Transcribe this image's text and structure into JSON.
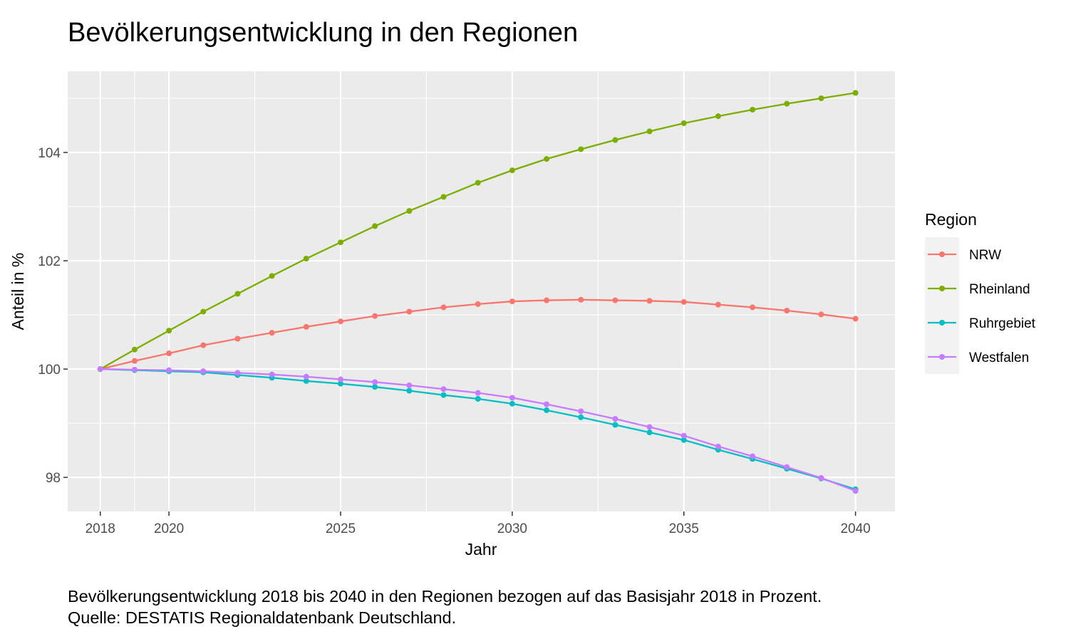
{
  "chart_data": {
    "type": "line",
    "title": "Bevölkerungsentwicklung in den Regionen",
    "xlabel": "Jahr",
    "ylabel": "Anteil in %",
    "xlim": [
      2017.05,
      2041.15
    ],
    "ylim": [
      97.37,
      105.5
    ],
    "x_ticks": [
      2018,
      2020,
      2025,
      2030,
      2035,
      2040
    ],
    "x_tick_labels": [
      "2018",
      "2020",
      "2025",
      "2030",
      "2035",
      "2040"
    ],
    "y_ticks": [
      98,
      100,
      102,
      104
    ],
    "y_tick_labels": [
      "98",
      "100",
      "102",
      "104"
    ],
    "grid": true,
    "legend": {
      "title": "Region",
      "position": "right"
    },
    "x": [
      2018,
      2019,
      2020,
      2021,
      2022,
      2023,
      2024,
      2025,
      2026,
      2027,
      2028,
      2029,
      2030,
      2031,
      2032,
      2033,
      2034,
      2035,
      2036,
      2037,
      2038,
      2039,
      2040
    ],
    "series": [
      {
        "name": "NRW",
        "color": "#F8766D",
        "values": [
          100.0,
          100.15,
          100.29,
          100.44,
          100.56,
          100.67,
          100.78,
          100.88,
          100.98,
          101.06,
          101.14,
          101.2,
          101.25,
          101.27,
          101.28,
          101.27,
          101.26,
          101.24,
          101.19,
          101.14,
          101.08,
          101.01,
          100.93
        ]
      },
      {
        "name": "Rheinland",
        "color": "#7CAE00",
        "values": [
          100.0,
          100.36,
          100.71,
          101.06,
          101.39,
          101.72,
          102.04,
          102.34,
          102.64,
          102.92,
          103.18,
          103.44,
          103.67,
          103.88,
          104.06,
          104.23,
          104.39,
          104.54,
          104.67,
          104.79,
          104.9,
          105.0,
          105.1
        ]
      },
      {
        "name": "Ruhrgebiet",
        "color": "#00BFC4",
        "values": [
          100.0,
          99.98,
          99.96,
          99.94,
          99.89,
          99.84,
          99.78,
          99.73,
          99.67,
          99.6,
          99.52,
          99.45,
          99.36,
          99.24,
          99.11,
          98.97,
          98.83,
          98.69,
          98.51,
          98.34,
          98.16,
          97.98,
          97.78
        ]
      },
      {
        "name": "Westfalen",
        "color": "#C77CFF",
        "values": [
          100.0,
          99.99,
          99.98,
          99.96,
          99.93,
          99.9,
          99.86,
          99.81,
          99.76,
          99.7,
          99.63,
          99.56,
          99.47,
          99.35,
          99.22,
          99.08,
          98.93,
          98.77,
          98.57,
          98.39,
          98.19,
          97.99,
          97.75
        ]
      }
    ]
  },
  "caption": {
    "line1": "Bevölkerungsentwicklung 2018 bis 2040 in den Regionen bezogen auf das Basisjahr 2018 in Prozent.",
    "line2": "Quelle: DESTATIS Regionaldatenbank Deutschland."
  }
}
